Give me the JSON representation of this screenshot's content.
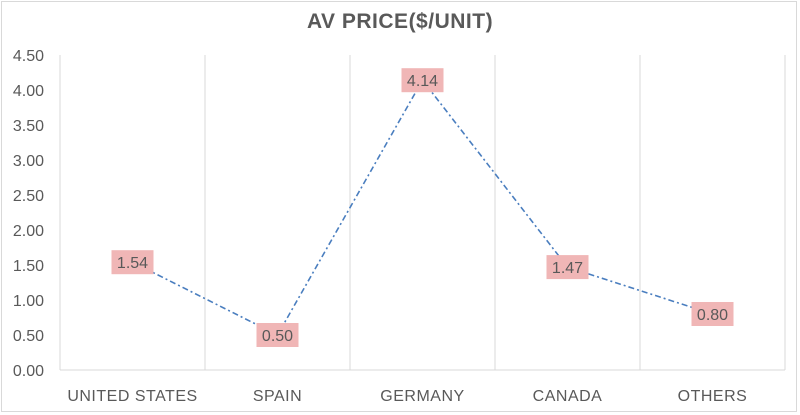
{
  "chart_data": {
    "type": "line",
    "title": "AV PRICE($/UNIT)",
    "xlabel": "",
    "ylabel": "",
    "categories": [
      "UNITED STATES",
      "SPAIN",
      "GERMANY",
      "CANADA",
      "OTHERS"
    ],
    "values": [
      1.54,
      0.5,
      4.14,
      1.47,
      0.8
    ],
    "data_labels": [
      "1.54",
      "0.50",
      "4.14",
      "1.47",
      "0.80"
    ],
    "ylim": [
      0,
      4.5
    ],
    "yticks": [
      "0.00",
      "0.50",
      "1.00",
      "1.50",
      "2.00",
      "2.50",
      "3.00",
      "3.50",
      "4.00",
      "4.50"
    ],
    "grid": "vertical-category-separators",
    "line_style": "dash-dot",
    "colors": {
      "line": "#4a7ebf",
      "label_bg": "#f0b6b6",
      "label_text": "#595959",
      "grid": "#d9d9d9",
      "axis_text": "#595959"
    }
  }
}
